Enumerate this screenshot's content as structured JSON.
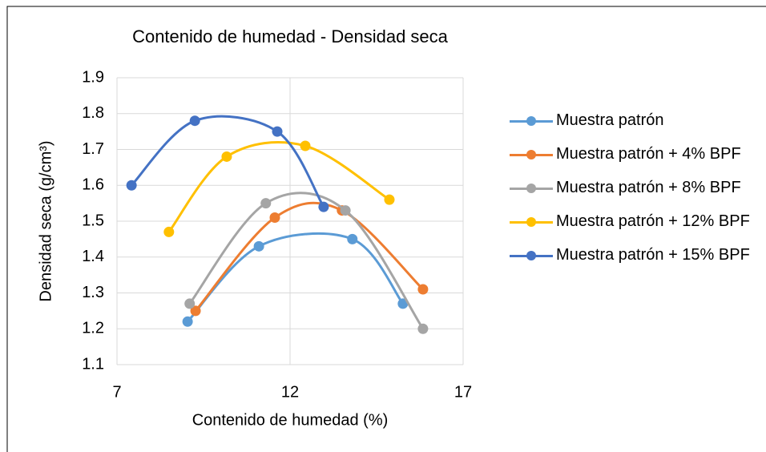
{
  "chart_data": {
    "type": "scatter",
    "title": "Contenido de humedad - Densidad seca",
    "x_label": "Contenido de humedad (%)",
    "y_label": "Densidad seca (g/cm³)",
    "xlim": [
      7,
      17
    ],
    "xticks": [
      7,
      12,
      17
    ],
    "ylim": [
      1.1,
      1.9
    ],
    "yticks": [
      1.1,
      1.2,
      1.3,
      1.4,
      1.5,
      1.6,
      1.7,
      1.8,
      1.9
    ],
    "grid": true,
    "smooth": true,
    "legend": "right",
    "series": [
      {
        "name": "Muestra patrón",
        "color": "#5b9bd5",
        "x": [
          9.04,
          11.1,
          13.8,
          15.26
        ],
        "values": [
          1.22,
          1.43,
          1.45,
          1.27
        ]
      },
      {
        "name": "Muestra patrón + 4% BPF",
        "color": "#ed7d31",
        "x": [
          9.27,
          11.56,
          13.5,
          15.84
        ],
        "values": [
          1.25,
          1.51,
          1.53,
          1.31
        ]
      },
      {
        "name": "Muestra patrón + 8% BPF",
        "color": "#a5a5a5",
        "x": [
          9.1,
          11.3,
          13.6,
          15.84
        ],
        "values": [
          1.27,
          1.55,
          1.53,
          1.2
        ]
      },
      {
        "name": "Muestra patrón + 12% BPF",
        "color": "#ffc000",
        "x": [
          8.5,
          10.17,
          12.44,
          14.87
        ],
        "values": [
          1.47,
          1.68,
          1.71,
          1.56
        ]
      },
      {
        "name": "Muestra patrón + 15% BPF",
        "color": "#4472c4",
        "x": [
          7.42,
          9.25,
          11.63,
          12.97
        ],
        "values": [
          1.6,
          1.78,
          1.75,
          1.54
        ]
      }
    ]
  }
}
